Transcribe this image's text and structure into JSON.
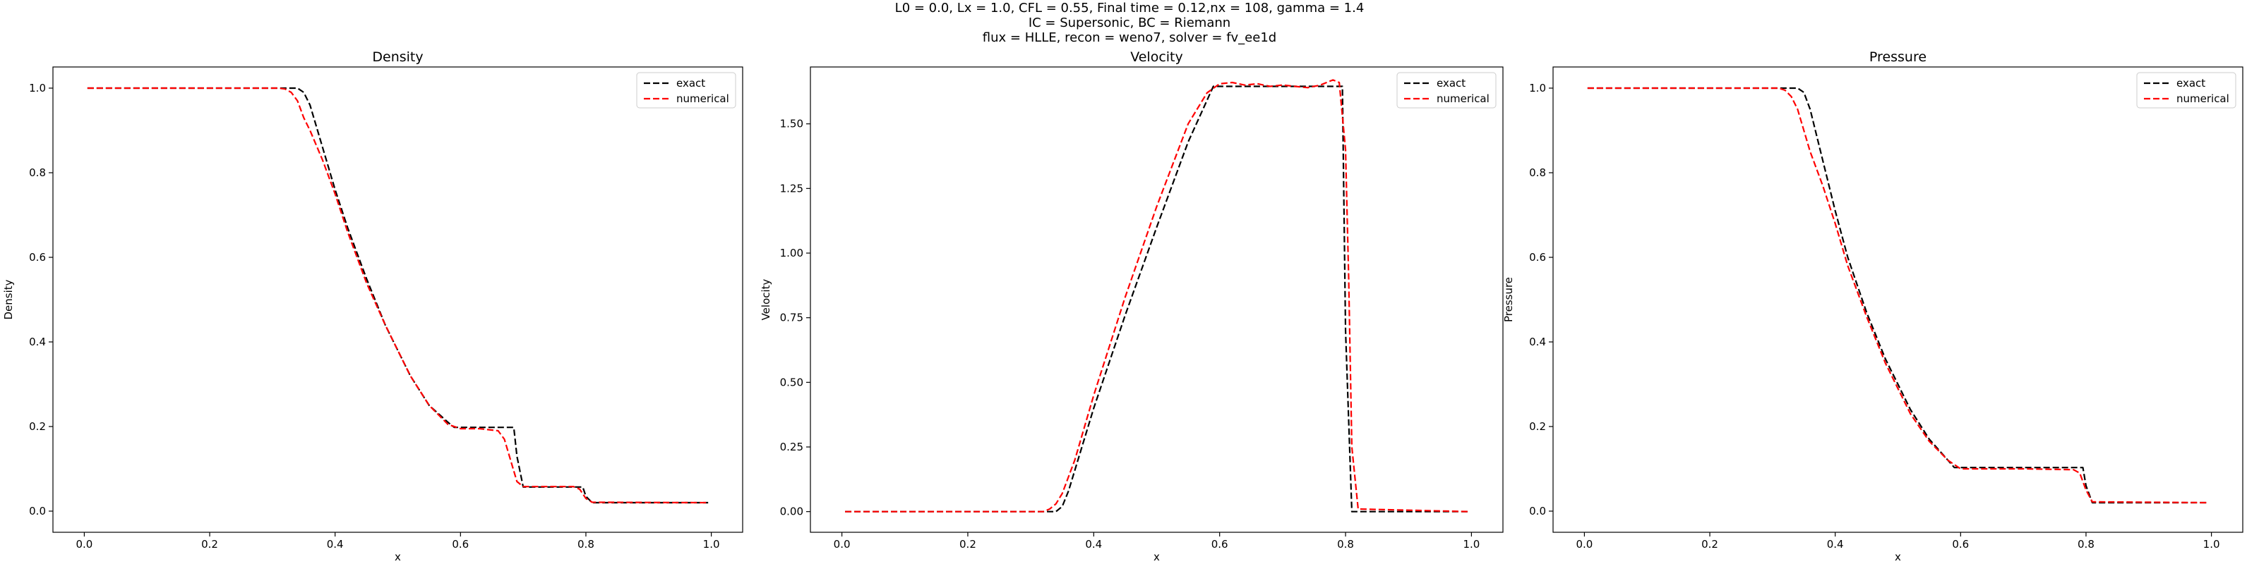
{
  "figure": {
    "suptitle_lines": [
      "L0 = 0.0, Lx = 1.0, CFL = 0.55, Final time = 0.12,nx = 108, gamma = 1.4",
      "IC = Supersonic, BC = Riemann",
      "flux = HLLE, recon = weno7, solver = fv_ee1d"
    ]
  },
  "chart_data": [
    {
      "type": "line",
      "title": "Density",
      "xlabel": "x",
      "ylabel": "Density",
      "xlim": [
        -0.05,
        1.05
      ],
      "ylim": [
        -0.05,
        1.05
      ],
      "xticks": [
        "0.0",
        "0.2",
        "0.4",
        "0.6",
        "0.8",
        "1.0"
      ],
      "yticks": [
        "0.0",
        "0.2",
        "0.4",
        "0.6",
        "0.8",
        "1.0"
      ],
      "grid": false,
      "legend_position": "top-right",
      "series": [
        {
          "name": "exact",
          "color": "#000000",
          "dash": "dashed",
          "x": [
            0.005,
            0.335,
            0.34,
            0.35,
            0.36,
            0.37,
            0.38,
            0.4,
            0.42,
            0.45,
            0.48,
            0.5,
            0.52,
            0.55,
            0.58,
            0.59,
            0.685,
            0.69,
            0.7,
            0.795,
            0.8,
            0.81,
            0.995
          ],
          "y": [
            1.0,
            1.0,
            1.0,
            0.99,
            0.96,
            0.91,
            0.86,
            0.76,
            0.67,
            0.55,
            0.44,
            0.38,
            0.32,
            0.25,
            0.21,
            0.198,
            0.198,
            0.13,
            0.057,
            0.057,
            0.035,
            0.02,
            0.02
          ]
        },
        {
          "name": "numerical",
          "color": "#ff0000",
          "dash": "dashed",
          "x": [
            0.005,
            0.31,
            0.32,
            0.33,
            0.34,
            0.35,
            0.36,
            0.38,
            0.4,
            0.42,
            0.45,
            0.48,
            0.5,
            0.52,
            0.55,
            0.58,
            0.6,
            0.63,
            0.66,
            0.67,
            0.68,
            0.69,
            0.7,
            0.72,
            0.78,
            0.79,
            0.8,
            0.81,
            0.995
          ],
          "y": [
            1.0,
            1.0,
            0.998,
            0.99,
            0.97,
            0.93,
            0.9,
            0.83,
            0.75,
            0.66,
            0.54,
            0.44,
            0.38,
            0.32,
            0.25,
            0.205,
            0.195,
            0.195,
            0.19,
            0.17,
            0.12,
            0.07,
            0.058,
            0.058,
            0.058,
            0.052,
            0.03,
            0.021,
            0.02
          ]
        }
      ]
    },
    {
      "type": "line",
      "title": "Velocity",
      "xlabel": "x",
      "ylabel": "Velocity",
      "xlim": [
        -0.05,
        1.05
      ],
      "ylim": [
        -0.08,
        1.72
      ],
      "xticks": [
        "0.0",
        "0.2",
        "0.4",
        "0.6",
        "0.8",
        "1.0"
      ],
      "yticks": [
        "0.00",
        "0.25",
        "0.50",
        "0.75",
        "1.00",
        "1.25",
        "1.50"
      ],
      "grid": false,
      "legend_position": "top-right",
      "series": [
        {
          "name": "exact",
          "color": "#000000",
          "dash": "dashed",
          "x": [
            0.005,
            0.335,
            0.34,
            0.35,
            0.36,
            0.4,
            0.45,
            0.5,
            0.55,
            0.59,
            0.795,
            0.8,
            0.81,
            0.995
          ],
          "y": [
            0.0,
            0.0,
            0.0,
            0.02,
            0.08,
            0.4,
            0.76,
            1.1,
            1.43,
            1.645,
            1.645,
            0.7,
            0.0,
            0.0
          ],
          "stepCorners": false
        },
        {
          "name": "numerical",
          "color": "#ff0000",
          "dash": "dashed",
          "x": [
            0.005,
            0.32,
            0.33,
            0.34,
            0.35,
            0.37,
            0.4,
            0.45,
            0.5,
            0.55,
            0.58,
            0.6,
            0.62,
            0.64,
            0.66,
            0.68,
            0.7,
            0.72,
            0.74,
            0.76,
            0.78,
            0.79,
            0.8,
            0.805,
            0.81,
            0.82,
            0.995
          ],
          "y": [
            0.0,
            0.0,
            0.01,
            0.03,
            0.07,
            0.2,
            0.45,
            0.83,
            1.18,
            1.5,
            1.62,
            1.655,
            1.66,
            1.65,
            1.655,
            1.645,
            1.65,
            1.645,
            1.64,
            1.65,
            1.67,
            1.66,
            1.4,
            0.9,
            0.25,
            0.01,
            0.0
          ]
        }
      ]
    },
    {
      "type": "line",
      "title": "Pressure",
      "xlabel": "x",
      "ylabel": "Pressure",
      "xlim": [
        -0.05,
        1.05
      ],
      "ylim": [
        -0.05,
        1.05
      ],
      "xticks": [
        "0.0",
        "0.2",
        "0.4",
        "0.6",
        "0.8",
        "1.0"
      ],
      "yticks": [
        "0.0",
        "0.2",
        "0.4",
        "0.6",
        "0.8",
        "1.0"
      ],
      "grid": false,
      "legend_position": "top-right",
      "series": [
        {
          "name": "exact",
          "color": "#000000",
          "dash": "dashed",
          "x": [
            0.005,
            0.335,
            0.34,
            0.35,
            0.36,
            0.37,
            0.38,
            0.4,
            0.42,
            0.45,
            0.48,
            0.5,
            0.52,
            0.55,
            0.58,
            0.59,
            0.795,
            0.8,
            0.81,
            0.995
          ],
          "y": [
            1.0,
            1.0,
            1.0,
            0.99,
            0.95,
            0.89,
            0.83,
            0.71,
            0.6,
            0.47,
            0.36,
            0.3,
            0.24,
            0.17,
            0.12,
            0.103,
            0.103,
            0.06,
            0.02,
            0.02
          ]
        },
        {
          "name": "numerical",
          "color": "#ff0000",
          "dash": "dashed",
          "x": [
            0.005,
            0.31,
            0.32,
            0.33,
            0.34,
            0.35,
            0.36,
            0.38,
            0.4,
            0.42,
            0.45,
            0.48,
            0.5,
            0.52,
            0.55,
            0.58,
            0.6,
            0.7,
            0.78,
            0.79,
            0.8,
            0.81,
            0.995
          ],
          "y": [
            1.0,
            1.0,
            0.995,
            0.98,
            0.95,
            0.9,
            0.85,
            0.77,
            0.68,
            0.58,
            0.46,
            0.35,
            0.29,
            0.23,
            0.165,
            0.12,
            0.1,
            0.1,
            0.098,
            0.09,
            0.05,
            0.022,
            0.02
          ]
        }
      ]
    }
  ]
}
